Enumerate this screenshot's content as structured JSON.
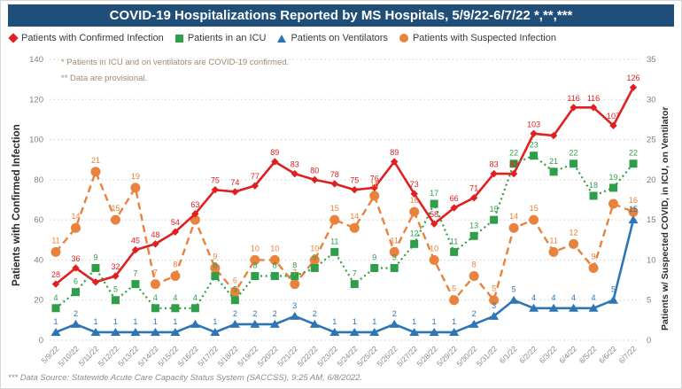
{
  "header": {
    "title": "COVID-19 Hospitalizations Reported by MS Hospitals, 5/9/22-6/7/22 *,**,***"
  },
  "legend": [
    {
      "label": "Patients with Confirmed Infection",
      "marker": "diamond-icon",
      "color": "#e02020"
    },
    {
      "label": "Patients in an ICU",
      "marker": "square-icon",
      "color": "#2e9e49"
    },
    {
      "label": "Patients on Ventilators",
      "marker": "triangle-icon",
      "color": "#2e75b6"
    },
    {
      "label": "Patients with Suspected Infection",
      "marker": "circle-icon",
      "color": "#e8823c"
    }
  ],
  "footnotes": {
    "note1": "* Patients in ICU and on ventilators are COVID-19 confirmed.",
    "note2": "** Data are provisional."
  },
  "footer": {
    "source": "*** Data Source: Statewide Acute Care Capacity Status System (SACCSS), 9:25 AM, 6/8/2022."
  },
  "chart_data": {
    "type": "line",
    "title": "COVID-19 Hospitalizations Reported by MS Hospitals, 5/9/22-6/7/22 *,**,***",
    "grid": "horizontal-dotted",
    "legend_position": "top-left",
    "categories": [
      "5/9/22",
      "5/10/22",
      "5/11/22",
      "5/12/22",
      "5/13/22",
      "5/14/22",
      "5/15/22",
      "5/16/22",
      "5/17/22",
      "5/18/22",
      "5/19/22",
      "5/20/22",
      "5/21/22",
      "5/22/22",
      "5/23/22",
      "5/24/22",
      "5/25/22",
      "5/26/22",
      "5/27/22",
      "5/28/22",
      "5/29/22",
      "5/30/22",
      "5/31/22",
      "6/1/22",
      "6/2/22",
      "6/3/22",
      "6/4/22",
      "6/5/22",
      "6/6/22",
      "6/7/22"
    ],
    "left_axis": {
      "title": "Patients with Confirmed Infection",
      "min": 0,
      "max": 140,
      "step": 20
    },
    "right_axis": {
      "title": "Patients w/ Suspected COVID, in ICU, on Ventilator",
      "min": 0,
      "max": 35,
      "step": 5
    },
    "series": [
      {
        "name": "Patients with Confirmed Infection",
        "axis": "left",
        "color": "#e02020",
        "marker": "diamond",
        "line": "solid",
        "values": [
          28,
          36,
          29,
          32,
          45,
          48,
          54,
          63,
          75,
          74,
          77,
          89,
          83,
          80,
          78,
          75,
          76,
          89,
          73,
          58,
          66,
          71,
          83,
          83,
          103,
          102,
          116,
          116,
          107,
          126
        ],
        "hidden_labels": [
          2,
          25
        ]
      },
      {
        "name": "Patients in an ICU",
        "axis": "right",
        "color": "#2e9e49",
        "marker": "square",
        "line": "dotted",
        "values": [
          4,
          6,
          9,
          5,
          7,
          4,
          4,
          4,
          8,
          5,
          8,
          8,
          8,
          9,
          11,
          7,
          9,
          9,
          12,
          17,
          11,
          13,
          15,
          22,
          23,
          21,
          22,
          18,
          19,
          22
        ],
        "hidden_labels": []
      },
      {
        "name": "Patients on Ventilators",
        "axis": "right",
        "color": "#2e75b6",
        "marker": "triangle",
        "line": "solid",
        "values": [
          1,
          2,
          1,
          1,
          1,
          1,
          1,
          2,
          1,
          2,
          2,
          2,
          3,
          2,
          1,
          1,
          1,
          2,
          1,
          1,
          1,
          2,
          3,
          5,
          4,
          4,
          4,
          4,
          5,
          15
        ],
        "hidden_labels": [
          7
        ]
      },
      {
        "name": "Patients with Suspected Infection",
        "axis": "right",
        "color": "#e8823c",
        "marker": "circle",
        "line": "dashed",
        "values": [
          11,
          14,
          21,
          15,
          19,
          7,
          8,
          15,
          9,
          6,
          10,
          10,
          7,
          10,
          15,
          14,
          18,
          11,
          16,
          10,
          5,
          8,
          5,
          14,
          15,
          11,
          12,
          9,
          17,
          16
        ],
        "hidden_labels": [
          7,
          28
        ]
      }
    ]
  }
}
